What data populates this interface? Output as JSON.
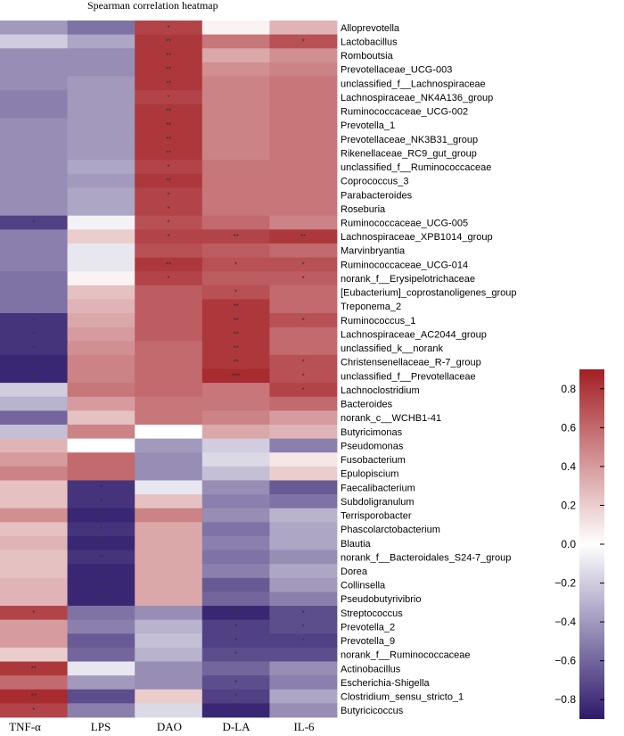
{
  "chart_data": {
    "type": "heatmap",
    "title": "Spearman correlation heatmap",
    "columns": [
      "TNF-α",
      "LPS",
      "DAO",
      "D-LA",
      "IL-6"
    ],
    "rows": [
      "Alloprevotella",
      "Lactobacillus",
      "Romboutsia",
      "Prevotellaceae_UCG-003",
      "unclassified_f__Lachnospiraceae",
      "Lachnospiraceae_NK4A136_group",
      "Ruminococcaceae_UCG-002",
      "Prevotella_1",
      "Prevotellaceae_NK3B31_group",
      "Rikenellaceae_RC9_gut_group",
      "unclassified_f__Ruminococcaceae",
      "Coprococcus_3",
      "Parabacteroides",
      "Roseburia",
      "Ruminococcaceae_UCG-005",
      "Lachnospiraceae_XPB1014_group",
      "Marvinbryantia",
      "Ruminococcaceae_UCG-014",
      "norank_f__Erysipelotrichaceae",
      "[Eubacterium]_coprostanoligenes_group",
      "Treponema_2",
      "Ruminococcus_1",
      "Lachnospiraceae_AC2044_group",
      "unclassified_k__norank",
      "Christensenellaceae_R-7_group",
      "unclassified_f__Prevotellaceae",
      "Lachnoclostridium",
      "Bacteroides",
      "norank_c__WCHB1-41",
      "Butyricimonas",
      "Pseudomonas",
      "Fusobacterium",
      "Epulopiscium",
      "Faecalibacterium",
      "Subdoligranulum",
      "Terrisporobacter",
      "Phascolarctobacterium",
      "Blautia",
      "norank_f__Bacteroidales_S24-7_group",
      "Dorea",
      "Collinsella",
      "Pseudobutyrivibrio",
      "Streptococcus",
      "Prevotella_2",
      "Prevotella_9",
      "norank_f__Ruminococcaceae",
      "Actinobacillus",
      "Escherichia-Shigella",
      "Clostridium_sensu_stricto_1",
      "Butyricicoccus"
    ],
    "values": [
      [
        -0.4,
        -0.55,
        0.75,
        0.05,
        0.3
      ],
      [
        -0.2,
        -0.35,
        0.8,
        0.55,
        0.7
      ],
      [
        -0.45,
        -0.45,
        0.8,
        0.35,
        0.45
      ],
      [
        -0.45,
        -0.45,
        0.8,
        0.45,
        0.5
      ],
      [
        -0.45,
        -0.4,
        0.8,
        0.5,
        0.55
      ],
      [
        -0.5,
        -0.4,
        0.75,
        0.5,
        0.55
      ],
      [
        -0.5,
        -0.4,
        0.8,
        0.5,
        0.55
      ],
      [
        -0.45,
        -0.4,
        0.8,
        0.5,
        0.55
      ],
      [
        -0.45,
        -0.4,
        0.8,
        0.5,
        0.55
      ],
      [
        -0.45,
        -0.4,
        0.8,
        0.5,
        0.55
      ],
      [
        -0.45,
        -0.35,
        0.75,
        0.55,
        0.55
      ],
      [
        -0.45,
        -0.4,
        0.8,
        0.55,
        0.55
      ],
      [
        -0.45,
        -0.35,
        0.75,
        0.55,
        0.55
      ],
      [
        -0.45,
        -0.35,
        0.75,
        0.55,
        0.55
      ],
      [
        -0.75,
        -0.05,
        0.7,
        0.6,
        0.5
      ],
      [
        -0.5,
        0.2,
        0.75,
        0.75,
        0.8
      ],
      [
        -0.5,
        -0.1,
        0.7,
        0.65,
        0.6
      ],
      [
        -0.5,
        -0.1,
        0.8,
        0.7,
        0.7
      ],
      [
        -0.55,
        0.05,
        0.75,
        0.65,
        0.65
      ],
      [
        -0.55,
        0.25,
        0.65,
        0.7,
        0.6
      ],
      [
        -0.55,
        0.3,
        0.65,
        0.8,
        0.6
      ],
      [
        -0.8,
        0.35,
        0.65,
        0.8,
        0.7
      ],
      [
        -0.8,
        0.4,
        0.65,
        0.8,
        0.6
      ],
      [
        -0.8,
        0.45,
        0.6,
        0.8,
        0.6
      ],
      [
        -0.85,
        0.5,
        0.6,
        0.8,
        0.7
      ],
      [
        -0.85,
        0.5,
        0.6,
        0.85,
        0.7
      ],
      [
        -0.2,
        0.55,
        0.6,
        0.55,
        0.75
      ],
      [
        -0.3,
        0.4,
        0.55,
        0.55,
        0.6
      ],
      [
        -0.6,
        0.25,
        0.55,
        0.5,
        0.4
      ],
      [
        -0.25,
        0.5,
        0.0,
        0.35,
        0.3
      ],
      [
        0.3,
        0.0,
        -0.4,
        -0.2,
        -0.5
      ],
      [
        0.4,
        0.6,
        -0.45,
        -0.15,
        0.1
      ],
      [
        0.5,
        0.6,
        -0.45,
        -0.25,
        0.2
      ],
      [
        0.25,
        -0.8,
        -0.1,
        -0.45,
        -0.65
      ],
      [
        0.25,
        -0.8,
        0.25,
        -0.5,
        -0.55
      ],
      [
        0.45,
        -0.85,
        0.5,
        -0.45,
        -0.3
      ],
      [
        0.25,
        -0.8,
        0.35,
        -0.55,
        -0.35
      ],
      [
        0.3,
        -0.85,
        0.35,
        -0.5,
        -0.35
      ],
      [
        0.25,
        -0.8,
        0.35,
        -0.55,
        -0.45
      ],
      [
        0.25,
        -0.85,
        0.35,
        -0.5,
        -0.35
      ],
      [
        0.3,
        -0.85,
        0.35,
        -0.65,
        -0.4
      ],
      [
        0.3,
        -0.85,
        0.35,
        -0.6,
        -0.5
      ],
      [
        0.75,
        -0.55,
        -0.45,
        -0.85,
        -0.7
      ],
      [
        0.4,
        -0.5,
        -0.3,
        -0.75,
        -0.7
      ],
      [
        0.4,
        -0.65,
        -0.25,
        -0.75,
        -0.75
      ],
      [
        0.2,
        -0.6,
        -0.3,
        -0.7,
        -0.7
      ],
      [
        0.8,
        -0.1,
        -0.45,
        -0.6,
        -0.45
      ],
      [
        0.6,
        -0.4,
        -0.45,
        -0.7,
        -0.5
      ],
      [
        0.85,
        -0.7,
        0.2,
        -0.75,
        -0.35
      ],
      [
        0.75,
        -0.5,
        -0.15,
        -0.85,
        -0.45
      ]
    ],
    "significance": [
      [
        "",
        "",
        "*",
        "",
        ""
      ],
      [
        "",
        "",
        "**",
        "",
        "*"
      ],
      [
        "",
        "",
        "**",
        "",
        ""
      ],
      [
        "",
        "",
        "**",
        "",
        ""
      ],
      [
        "",
        "",
        "**",
        "",
        ""
      ],
      [
        "",
        "",
        "*",
        "",
        ""
      ],
      [
        "",
        "",
        "**",
        "",
        ""
      ],
      [
        "",
        "",
        "**",
        "",
        ""
      ],
      [
        "",
        "",
        "**",
        "",
        ""
      ],
      [
        "",
        "",
        "**",
        "",
        ""
      ],
      [
        "",
        "",
        "*",
        "",
        ""
      ],
      [
        "",
        "",
        "**",
        "",
        ""
      ],
      [
        "",
        "",
        "*",
        "",
        ""
      ],
      [
        "",
        "",
        "*",
        "",
        ""
      ],
      [
        "*",
        "",
        "*",
        "",
        ""
      ],
      [
        "",
        "",
        "*",
        "**",
        "**"
      ],
      [
        "",
        "",
        "",
        "",
        ""
      ],
      [
        "",
        "",
        "**",
        "*",
        "*"
      ],
      [
        "",
        "",
        "*",
        "",
        "*"
      ],
      [
        "",
        "",
        "",
        "*",
        ""
      ],
      [
        "",
        "",
        "",
        "**",
        ""
      ],
      [
        "*",
        "",
        "",
        "**",
        "*"
      ],
      [
        "*",
        "",
        "",
        "**",
        ""
      ],
      [
        "*",
        "",
        "",
        "**",
        ""
      ],
      [
        "**",
        "",
        "",
        "**",
        "*"
      ],
      [
        "**",
        "",
        "",
        "***",
        "*"
      ],
      [
        "",
        "",
        "",
        "",
        "*"
      ],
      [
        "",
        "",
        "",
        "",
        ""
      ],
      [
        "",
        "",
        "",
        "",
        ""
      ],
      [
        "",
        "",
        "",
        "",
        ""
      ],
      [
        "",
        "",
        "",
        "",
        ""
      ],
      [
        "",
        "",
        "",
        "",
        ""
      ],
      [
        "",
        "",
        "",
        "",
        ""
      ],
      [
        "",
        "*",
        "",
        "",
        ""
      ],
      [
        "",
        "*",
        "",
        "",
        ""
      ],
      [
        "",
        "**",
        "",
        "",
        ""
      ],
      [
        "",
        "*",
        "",
        "",
        ""
      ],
      [
        "",
        "**",
        "",
        "",
        ""
      ],
      [
        "",
        "**",
        "",
        "",
        ""
      ],
      [
        "",
        "**",
        "",
        "",
        ""
      ],
      [
        "",
        "**",
        "",
        "",
        ""
      ],
      [
        "",
        "***",
        "",
        "",
        ""
      ],
      [
        "*",
        "",
        "",
        "***",
        "*"
      ],
      [
        "",
        "",
        "",
        "*",
        "*"
      ],
      [
        "",
        "",
        "",
        "*",
        "*"
      ],
      [
        "",
        "",
        "",
        "*",
        ""
      ],
      [
        "**",
        "",
        "",
        "",
        ""
      ],
      [
        "",
        "",
        "",
        "*",
        ""
      ],
      [
        "**",
        "",
        "",
        "*",
        ""
      ],
      [
        "*",
        "",
        "",
        "**",
        ""
      ]
    ],
    "colorbar": {
      "min": -0.9,
      "max": 0.9,
      "ticks": [
        0.8,
        0.6,
        0.4,
        0.2,
        0.0,
        -0.2,
        -0.4,
        -0.6,
        -0.8
      ],
      "tick_labels": [
        "0.8",
        "0.6",
        "0.4",
        "0.2",
        "0.0",
        "−0.2",
        "−0.4",
        "−0.6",
        "−0.8"
      ]
    },
    "colors": {
      "low": "#2e1a6b",
      "mid": "#ffffff",
      "high": "#a31f24"
    }
  }
}
